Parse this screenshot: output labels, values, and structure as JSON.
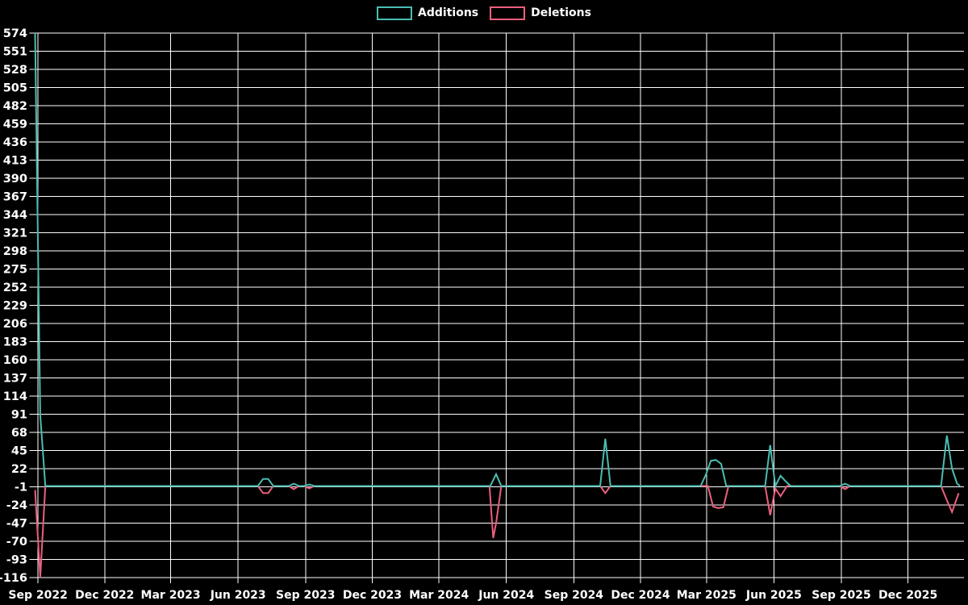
{
  "chart_data": {
    "type": "line",
    "title": "",
    "legend_position": "top-center",
    "grid": true,
    "background_color": "#000000",
    "grid_color": "#ffffff",
    "text_color": "#ffffff",
    "legend": [
      {
        "label": "Additions",
        "color": "#4abdb2"
      },
      {
        "label": "Deletions",
        "color": "#ec5f7e"
      }
    ],
    "ylabel": "",
    "xlabel": "",
    "ylim": [
      -116,
      574
    ],
    "y_tick_step": 23,
    "y_ticks": [
      574,
      551,
      528,
      505,
      482,
      459,
      436,
      413,
      390,
      367,
      344,
      321,
      298,
      275,
      252,
      229,
      206,
      183,
      160,
      137,
      114,
      91,
      68,
      45,
      22,
      -1,
      -24,
      -47,
      -70,
      -93,
      -116
    ],
    "x_domain": [
      "2022-08-28",
      "2026-02-12"
    ],
    "x_ticks": [
      {
        "label": "Sep 2022",
        "date": "2022-09-01"
      },
      {
        "label": "Dec 2022",
        "date": "2022-12-01"
      },
      {
        "label": "Mar 2023",
        "date": "2023-03-01"
      },
      {
        "label": "Jun 2023",
        "date": "2023-06-01"
      },
      {
        "label": "Sep 2023",
        "date": "2023-09-01"
      },
      {
        "label": "Dec 2023",
        "date": "2023-12-01"
      },
      {
        "label": "Mar 2024",
        "date": "2024-03-01"
      },
      {
        "label": "Jun 2024",
        "date": "2024-06-01"
      },
      {
        "label": "Sep 2024",
        "date": "2024-09-01"
      },
      {
        "label": "Dec 2024",
        "date": "2024-12-01"
      },
      {
        "label": "Mar 2025",
        "date": "2025-03-01"
      },
      {
        "label": "Jun 2025",
        "date": "2025-06-01"
      },
      {
        "label": "Sep 2025",
        "date": "2025-09-01"
      },
      {
        "label": "Dec 2025",
        "date": "2025-12-01"
      }
    ],
    "series": [
      {
        "name": "Additions",
        "color": "#4abdb2",
        "points": [
          [
            "2022-08-28",
            574
          ],
          [
            "2022-09-04",
            90
          ],
          [
            "2022-09-11",
            0
          ],
          [
            "2023-06-28",
            0
          ],
          [
            "2023-07-05",
            9
          ],
          [
            "2023-07-12",
            9
          ],
          [
            "2023-07-19",
            0
          ],
          [
            "2023-08-09",
            0
          ],
          [
            "2023-08-16",
            3
          ],
          [
            "2023-08-23",
            0
          ],
          [
            "2023-08-30",
            0
          ],
          [
            "2023-09-06",
            2
          ],
          [
            "2023-09-13",
            0
          ],
          [
            "2024-05-10",
            0
          ],
          [
            "2024-05-18",
            15
          ],
          [
            "2024-05-25",
            0
          ],
          [
            "2024-10-07",
            0
          ],
          [
            "2024-10-14",
            60
          ],
          [
            "2024-10-21",
            0
          ],
          [
            "2025-02-21",
            0
          ],
          [
            "2025-02-28",
            14
          ],
          [
            "2025-03-07",
            32
          ],
          [
            "2025-03-14",
            33
          ],
          [
            "2025-03-21",
            28
          ],
          [
            "2025-03-28",
            0
          ],
          [
            "2025-05-20",
            0
          ],
          [
            "2025-05-27",
            52
          ],
          [
            "2025-06-03",
            0
          ],
          [
            "2025-06-10",
            13
          ],
          [
            "2025-06-17",
            6
          ],
          [
            "2025-06-24",
            0
          ],
          [
            "2025-08-30",
            0
          ],
          [
            "2025-09-06",
            3
          ],
          [
            "2025-09-13",
            0
          ],
          [
            "2026-01-15",
            0
          ],
          [
            "2026-01-23",
            64
          ],
          [
            "2026-01-30",
            22
          ],
          [
            "2026-02-06",
            3
          ],
          [
            "2026-02-10",
            0
          ]
        ]
      },
      {
        "name": "Deletions",
        "color": "#ec5f7e",
        "points": [
          [
            "2022-08-28",
            -5
          ],
          [
            "2022-09-04",
            -116
          ],
          [
            "2022-09-11",
            0
          ],
          [
            "2023-06-28",
            0
          ],
          [
            "2023-07-05",
            -9
          ],
          [
            "2023-07-12",
            -9
          ],
          [
            "2023-07-19",
            0
          ],
          [
            "2023-08-09",
            0
          ],
          [
            "2023-08-16",
            -4
          ],
          [
            "2023-08-23",
            0
          ],
          [
            "2023-08-30",
            0
          ],
          [
            "2023-09-06",
            -3
          ],
          [
            "2023-09-13",
            0
          ],
          [
            "2024-05-09",
            0
          ],
          [
            "2024-05-14",
            -66
          ],
          [
            "2024-05-18",
            -47
          ],
          [
            "2024-05-25",
            0
          ],
          [
            "2024-10-07",
            0
          ],
          [
            "2024-10-14",
            -9
          ],
          [
            "2024-10-21",
            0
          ],
          [
            "2025-03-03",
            0
          ],
          [
            "2025-03-10",
            -26
          ],
          [
            "2025-03-17",
            -28
          ],
          [
            "2025-03-24",
            -27
          ],
          [
            "2025-03-31",
            0
          ],
          [
            "2025-05-20",
            0
          ],
          [
            "2025-05-27",
            -37
          ],
          [
            "2025-06-03",
            -3
          ],
          [
            "2025-06-10",
            -13
          ],
          [
            "2025-06-19",
            0
          ],
          [
            "2025-08-30",
            0
          ],
          [
            "2025-09-06",
            -4
          ],
          [
            "2025-09-13",
            0
          ],
          [
            "2026-01-15",
            0
          ],
          [
            "2026-01-23",
            -18
          ],
          [
            "2026-01-30",
            -33
          ],
          [
            "2026-02-08",
            -9
          ]
        ]
      }
    ]
  }
}
